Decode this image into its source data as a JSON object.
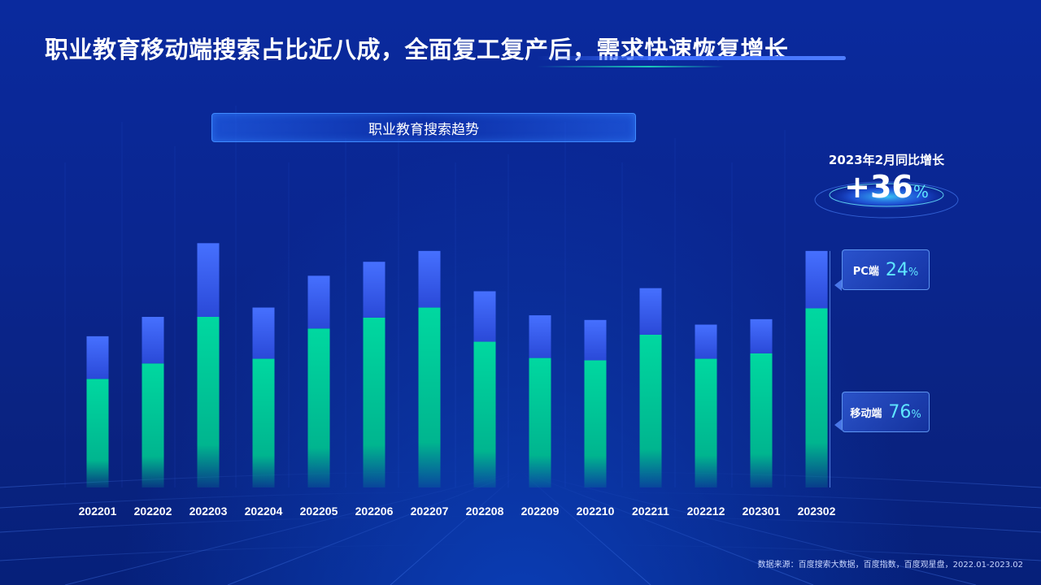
{
  "page": {
    "title": "职业教育移动端搜索占比近八成，全面复工复产后，需求快速恢复增长",
    "source_note": "数据来源：百度搜索大数据，百度指数，百度观星盘，2022.01-2023.02"
  },
  "colors": {
    "background": "#0a2690",
    "pc_bar": "#3a62f5",
    "mobile_bar": "#00d29a",
    "accent_cyan": "#5fe6ff"
  },
  "yoy": {
    "label": "2023年2月同比增长",
    "value": "+36",
    "unit": "%"
  },
  "shares": {
    "pc": {
      "label": "PC端",
      "value": "24",
      "unit": "%"
    },
    "mobile": {
      "label": "移动端",
      "value": "76",
      "unit": "%"
    }
  },
  "chart_data": {
    "type": "bar",
    "stacked": true,
    "title": "职业教育搜索趋势",
    "xlabel": "",
    "ylabel": "",
    "y_axis_visible": false,
    "categories": [
      "202201",
      "202202",
      "202203",
      "202204",
      "202205",
      "202206",
      "202207",
      "202208",
      "202209",
      "202210",
      "202211",
      "202212",
      "202301",
      "202302"
    ],
    "ylim": [
      0,
      330
    ],
    "series": [
      {
        "name": "移动端",
        "values": [
          140,
          160,
          220,
          166,
          205,
          219,
          232,
          188,
          167,
          164,
          197,
          166,
          173,
          231
        ]
      },
      {
        "name": "PC端",
        "values": [
          55,
          60,
          95,
          66,
          68,
          72,
          73,
          65,
          55,
          52,
          60,
          44,
          44,
          74
        ]
      }
    ]
  }
}
